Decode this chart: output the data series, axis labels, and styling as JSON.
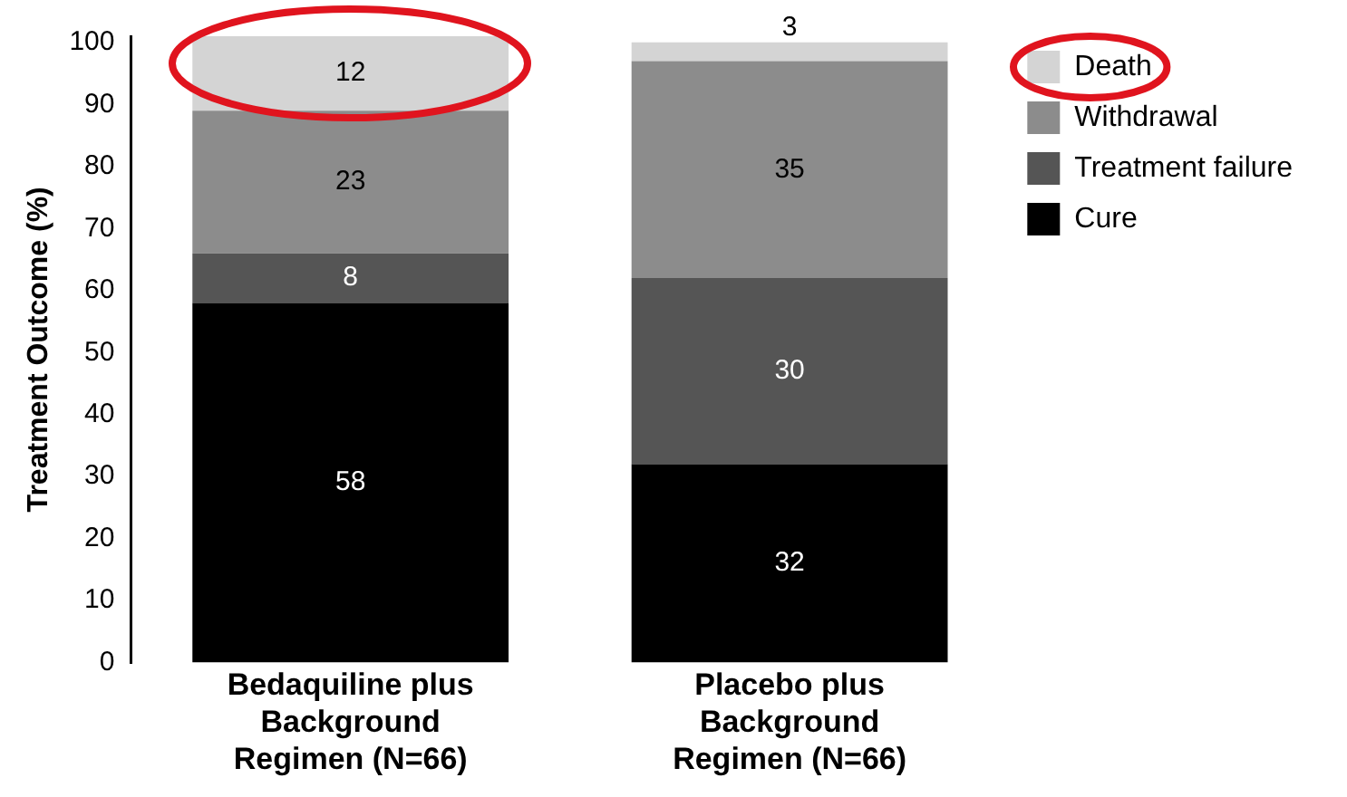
{
  "chart_data": {
    "type": "bar",
    "stacked": true,
    "ylabel": "Treatment Outcome (%)",
    "categories": [
      "Bedaquiline plus Background Regimen (N=66)",
      "Placebo plus Background Regimen (N=66)"
    ],
    "series": [
      {
        "name": "Cure",
        "color": "#000000",
        "values": [
          58,
          32
        ]
      },
      {
        "name": "Treatment failure",
        "color": "#555555",
        "values": [
          8,
          30
        ]
      },
      {
        "name": "Withdrawal",
        "color": "#8c8c8c",
        "values": [
          23,
          35
        ]
      },
      {
        "name": "Death",
        "color": "#d4d4d4",
        "values": [
          12,
          3
        ]
      }
    ],
    "ylim": [
      0,
      101
    ],
    "yticks": [
      0,
      10,
      20,
      30,
      40,
      50,
      60,
      70,
      80,
      90,
      100
    ],
    "data_labels": true,
    "legend": "top right",
    "grid": false
  }
}
